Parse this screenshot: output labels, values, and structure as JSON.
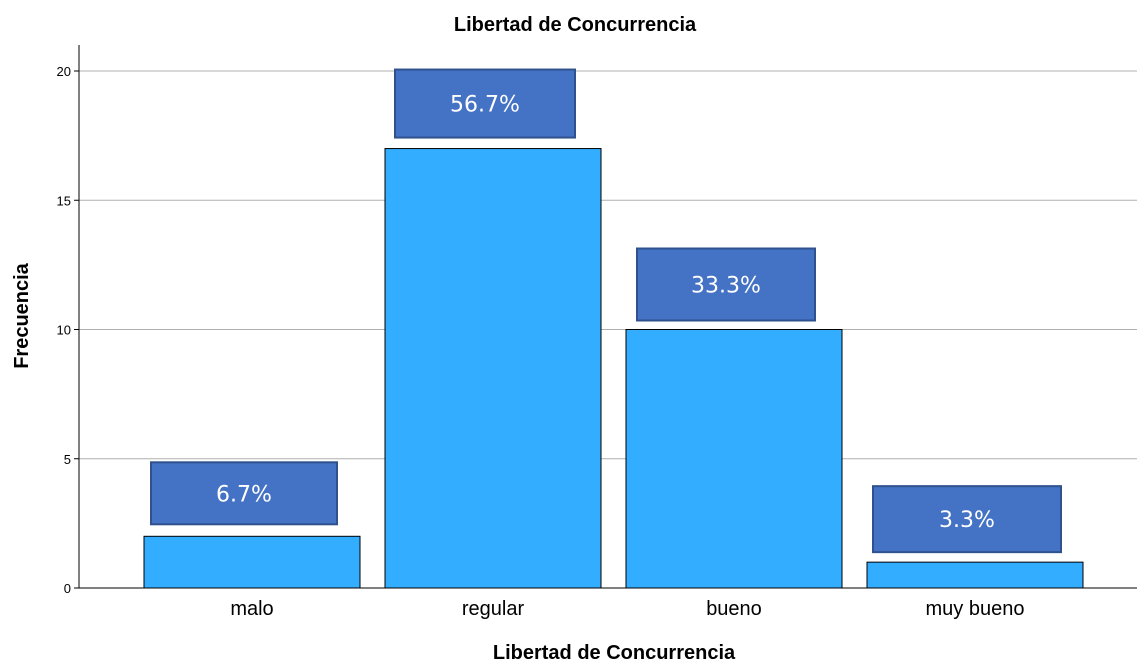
{
  "chart_data": {
    "type": "bar",
    "title": "Libertad de Concurrencia",
    "xlabel": "Libertad de Concurrencia",
    "ylabel": "Frecuencia",
    "categories": [
      "malo",
      "regular",
      "bueno",
      "muy bueno"
    ],
    "values": [
      2,
      17,
      10,
      1
    ],
    "data_labels": [
      "6.7%",
      "56.7%",
      "33.3%",
      "3.3%"
    ],
    "ylim": [
      0,
      21
    ],
    "yticks": [
      0,
      5,
      10,
      15,
      20
    ],
    "grid": true,
    "colors": {
      "bar_fill": "#33adff",
      "label_fill": "#4472c4",
      "label_border": "#2f528f",
      "grid": "#b0b0b0",
      "axis": "#000000"
    }
  }
}
